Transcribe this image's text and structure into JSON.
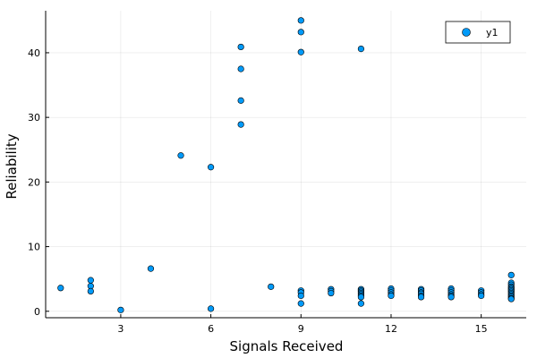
{
  "chart_data": {
    "type": "scatter",
    "xlabel": "Signals Received",
    "ylabel": "Reliability",
    "xlim": [
      0.5,
      16.5
    ],
    "ylim": [
      -1,
      46.5
    ],
    "xticks": [
      3,
      6,
      9,
      12,
      15
    ],
    "yticks": [
      0,
      10,
      20,
      30,
      40
    ],
    "grid": true,
    "legend": {
      "placement": "top-right"
    },
    "series": [
      {
        "name": "y1",
        "color": "#009AF9",
        "points": [
          [
            1,
            3.6
          ],
          [
            2,
            4.8
          ],
          [
            2,
            3.9
          ],
          [
            2,
            3.1
          ],
          [
            3,
            0.2
          ],
          [
            4,
            6.6
          ],
          [
            5,
            24.1
          ],
          [
            6,
            22.3
          ],
          [
            6,
            0.4
          ],
          [
            7,
            40.9
          ],
          [
            7,
            37.5
          ],
          [
            7,
            32.6
          ],
          [
            7,
            28.9
          ],
          [
            8,
            3.8
          ],
          [
            9,
            45.0
          ],
          [
            9,
            43.2
          ],
          [
            9,
            40.1
          ],
          [
            9,
            3.2
          ],
          [
            9,
            2.9
          ],
          [
            9,
            2.4
          ],
          [
            9,
            1.2
          ],
          [
            10,
            3.4
          ],
          [
            10,
            3.1
          ],
          [
            10,
            2.8
          ],
          [
            11,
            40.6
          ],
          [
            11,
            3.4
          ],
          [
            11,
            3.2
          ],
          [
            11,
            3.0
          ],
          [
            11,
            2.8
          ],
          [
            11,
            2.6
          ],
          [
            11,
            2.4
          ],
          [
            11,
            2.2
          ],
          [
            11,
            1.2
          ],
          [
            12,
            3.5
          ],
          [
            12,
            3.2
          ],
          [
            12,
            2.9
          ],
          [
            12,
            2.6
          ],
          [
            12,
            2.4
          ],
          [
            13,
            3.4
          ],
          [
            13,
            3.2
          ],
          [
            13,
            2.9
          ],
          [
            13,
            2.7
          ],
          [
            13,
            2.4
          ],
          [
            13,
            2.2
          ],
          [
            14,
            3.5
          ],
          [
            14,
            3.2
          ],
          [
            14,
            2.9
          ],
          [
            14,
            2.6
          ],
          [
            14,
            2.4
          ],
          [
            14,
            2.2
          ],
          [
            15,
            3.2
          ],
          [
            15,
            2.9
          ],
          [
            15,
            2.6
          ],
          [
            15,
            2.4
          ],
          [
            16,
            5.6
          ],
          [
            16,
            4.4
          ],
          [
            16,
            4.1
          ],
          [
            16,
            3.8
          ],
          [
            16,
            3.6
          ],
          [
            16,
            3.4
          ],
          [
            16,
            3.2
          ],
          [
            16,
            3.0
          ],
          [
            16,
            2.8
          ],
          [
            16,
            2.6
          ],
          [
            16,
            2.4
          ],
          [
            16,
            2.2
          ],
          [
            16,
            2.0
          ],
          [
            16,
            1.9
          ]
        ]
      }
    ]
  }
}
